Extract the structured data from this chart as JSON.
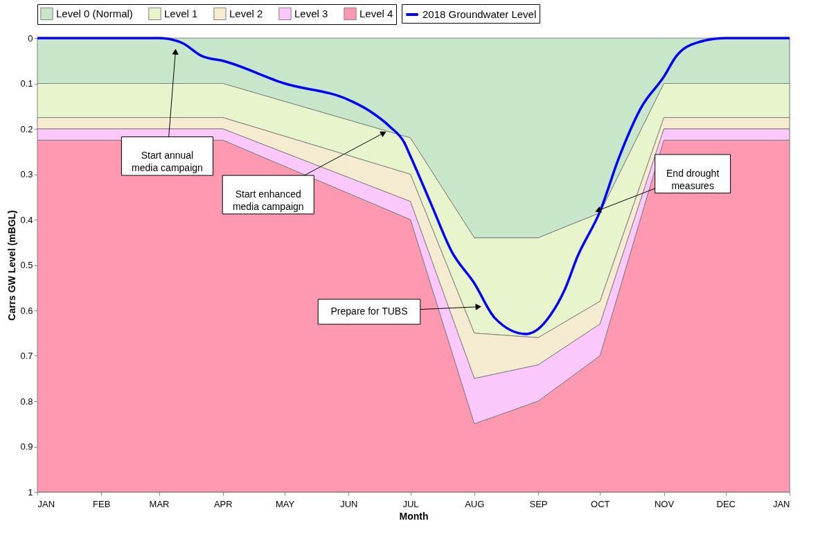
{
  "chart_data": {
    "type": "area",
    "stacked": true,
    "xlabel": "Month",
    "ylabel": "Carrs GW Level (mBGL)",
    "legend": "top",
    "xlim": [
      "2018-01-01",
      "2019-01-01"
    ],
    "xticks": [
      {
        "value": "2018-01-01",
        "label": "JAN"
      },
      {
        "value": "2018-02-01",
        "label": "FEB"
      },
      {
        "value": "2018-03-01",
        "label": "MAR"
      },
      {
        "value": "2018-04-01",
        "label": "APR"
      },
      {
        "value": "2018-05-01",
        "label": "MAY"
      },
      {
        "value": "2018-06-01",
        "label": "JUN"
      },
      {
        "value": "2018-07-01",
        "label": "JUL"
      },
      {
        "value": "2018-08-01",
        "label": "AUG"
      },
      {
        "value": "2018-09-01",
        "label": "SEP"
      },
      {
        "value": "2018-10-01",
        "label": "OCT"
      },
      {
        "value": "2018-11-01",
        "label": "NOV"
      },
      {
        "value": "2018-12-01",
        "label": "DEC"
      },
      {
        "value": "2019-01-01",
        "label": "JAN"
      }
    ],
    "ylim": [
      1,
      0
    ],
    "yticks": [
      0,
      0.1,
      0.2,
      0.3,
      0.4,
      0.5,
      0.6,
      0.7,
      0.8,
      0.9,
      1
    ],
    "series": [
      {
        "name": "Level 0 (Normal)",
        "color": "#c8e6c9",
        "x": [
          "2018-01-01",
          "2018-04-01",
          "2018-07-01",
          "2018-08-01",
          "2018-09-01",
          "2018-10-01",
          "2018-11-01",
          "2019-01-01"
        ],
        "values": [
          0.1,
          0.1,
          0.22,
          0.44,
          0.44,
          0.385,
          0.1,
          0.1
        ]
      },
      {
        "name": "Level 1",
        "color": "#e8f4cb",
        "x": [
          "2018-01-01",
          "2018-04-01",
          "2018-07-01",
          "2018-08-01",
          "2018-09-01",
          "2018-10-01",
          "2018-11-01",
          "2019-01-01"
        ],
        "values": [
          0.075,
          0.075,
          0.08,
          0.21,
          0.22,
          0.195,
          0.075,
          0.075
        ]
      },
      {
        "name": "Level 2",
        "color": "#f4ebd1",
        "x": [
          "2018-01-01",
          "2018-04-01",
          "2018-07-01",
          "2018-08-01",
          "2018-09-01",
          "2018-10-01",
          "2018-11-01",
          "2019-01-01"
        ],
        "values": [
          0.025,
          0.025,
          0.06,
          0.1,
          0.06,
          0.05,
          0.025,
          0.025
        ]
      },
      {
        "name": "Level 3",
        "color": "#fbc8fb",
        "x": [
          "2018-01-01",
          "2018-04-01",
          "2018-07-01",
          "2018-08-01",
          "2018-09-01",
          "2018-10-01",
          "2018-11-01",
          "2019-01-01"
        ],
        "values": [
          0.025,
          0.025,
          0.04,
          0.1,
          0.08,
          0.07,
          0.025,
          0.025
        ]
      },
      {
        "name": "Level 4",
        "color": "#ff99b1",
        "x": [
          "2018-01-01",
          "2018-04-01",
          "2018-07-01",
          "2018-08-01",
          "2018-09-01",
          "2018-10-01",
          "2018-11-01",
          "2019-01-01"
        ],
        "values": [
          0.775,
          0.775,
          0.6,
          0.15,
          0.2,
          0.3,
          0.775,
          0.775
        ]
      },
      {
        "name": "2018 Groundwater Level",
        "type": "line",
        "color": "#0000ff",
        "x": [
          "2018-01-01",
          "2018-02-01",
          "2018-03-01",
          "2018-03-12",
          "2018-03-22",
          "2018-04-01",
          "2018-05-01",
          "2018-06-01",
          "2018-06-11",
          "2018-06-21",
          "2018-06-28",
          "2018-07-01",
          "2018-07-11",
          "2018-07-21",
          "2018-08-01",
          "2018-08-11",
          "2018-08-26",
          "2018-09-01",
          "2018-09-07",
          "2018-09-14",
          "2018-09-20",
          "2018-10-01",
          "2018-10-10",
          "2018-10-21",
          "2018-11-01",
          "2018-11-07",
          "2018-11-17",
          "2018-12-01",
          "2019-01-01"
        ],
        "values": [
          0,
          0,
          0,
          0.01,
          0.04,
          0.05,
          0.1,
          0.136,
          0.16,
          0.195,
          0.23,
          0.26,
          0.365,
          0.47,
          0.54,
          0.617,
          0.652,
          0.641,
          0.61,
          0.553,
          0.482,
          0.382,
          0.266,
          0.153,
          0.085,
          0.04,
          0.01,
          0,
          0
        ]
      }
    ],
    "annotations": [
      {
        "text": "Start annual\nmedia campaign",
        "x": "2018-03-09",
        "y": 0.03
      },
      {
        "text": "Start enhanced\nmedia campaign",
        "x": "2018-06-18",
        "y": 0.209
      },
      {
        "text": "Prepare for TUBS",
        "x": "2018-08-03",
        "y": 0.592
      },
      {
        "text": "End drought\nmeasures",
        "x": "2018-09-30",
        "y": 0.38
      }
    ]
  }
}
